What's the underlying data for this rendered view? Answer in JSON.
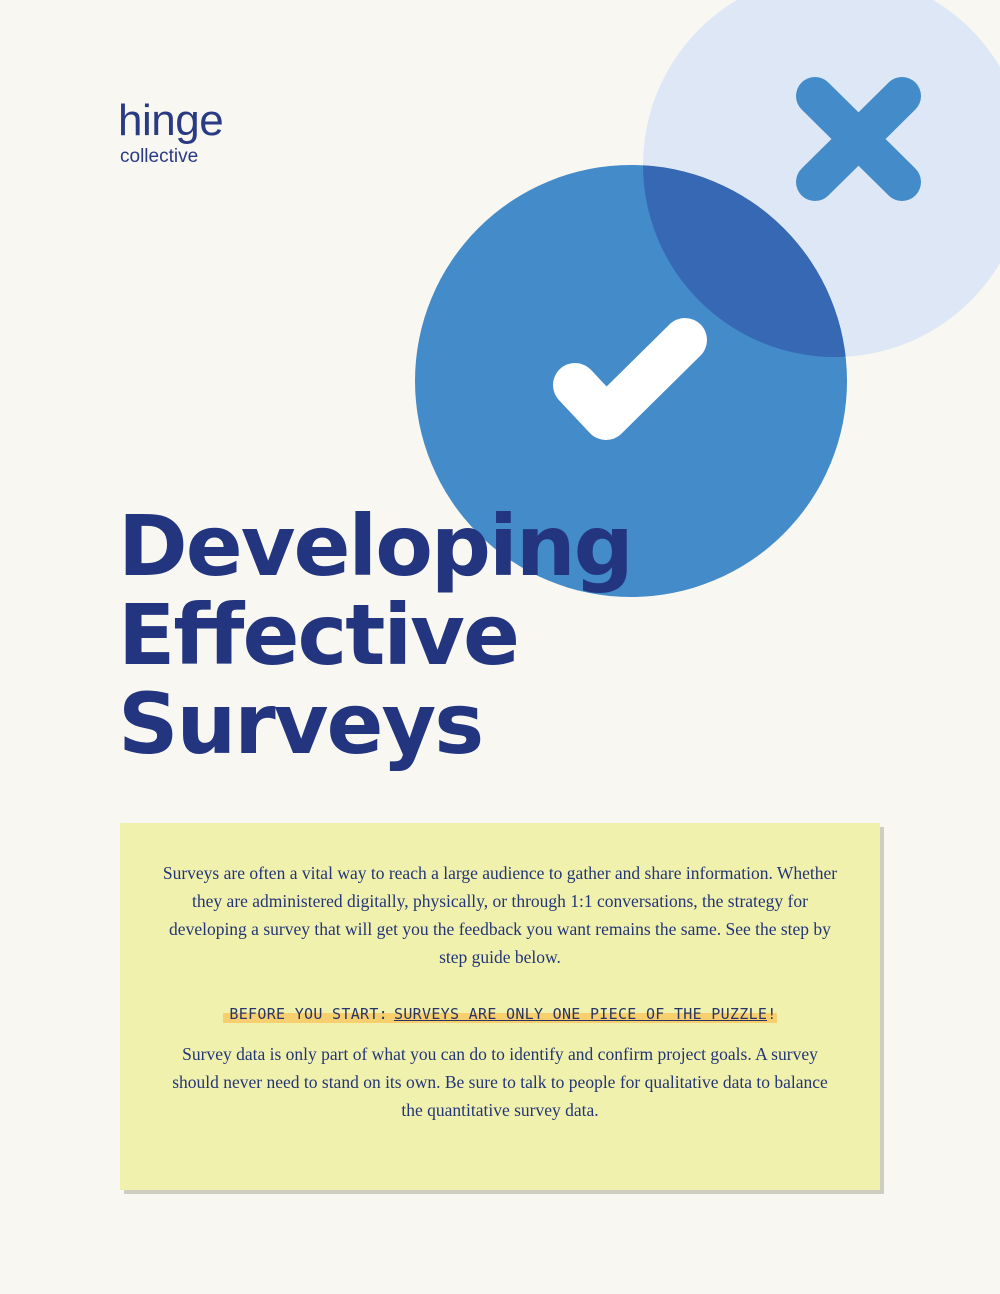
{
  "logo": {
    "wordmark": "hinge",
    "subtitle": "collective"
  },
  "graphic": {
    "check_icon": "checkmark-icon",
    "x_icon": "x-mark-icon",
    "colors": {
      "main_circle": "#448bc9",
      "light_circle": "#dde7f5",
      "overlap": "#3668b3",
      "x_mark": "#448bc9",
      "check": "#ffffff"
    }
  },
  "title": {
    "line1": "Developing",
    "line2": "Effective",
    "line3": "Surveys"
  },
  "callout": {
    "intro": "Surveys are often a vital way to reach a large audience to gather and share information. Whether they are administered digitally, physically, or through 1:1 conversations, the strategy for developing a survey that will get you the feedback you want remains the same. See the step by step guide below.",
    "note_label": "BEFORE YOU START:",
    "note_emphasis": "SURVEYS ARE ONLY ONE PIECE OF THE PUZZLE",
    "note_end": "!",
    "body": "Survey data is only part of what you can do to identify and confirm project goals. A survey should never need to stand on its own. Be sure to talk to people for qualitative data to balance the quantitative survey data."
  },
  "colors": {
    "page_background": "#f8f7f1",
    "title": "#243580",
    "callout_background": "#f1f1ae",
    "highlight": "#f7cf6e"
  }
}
